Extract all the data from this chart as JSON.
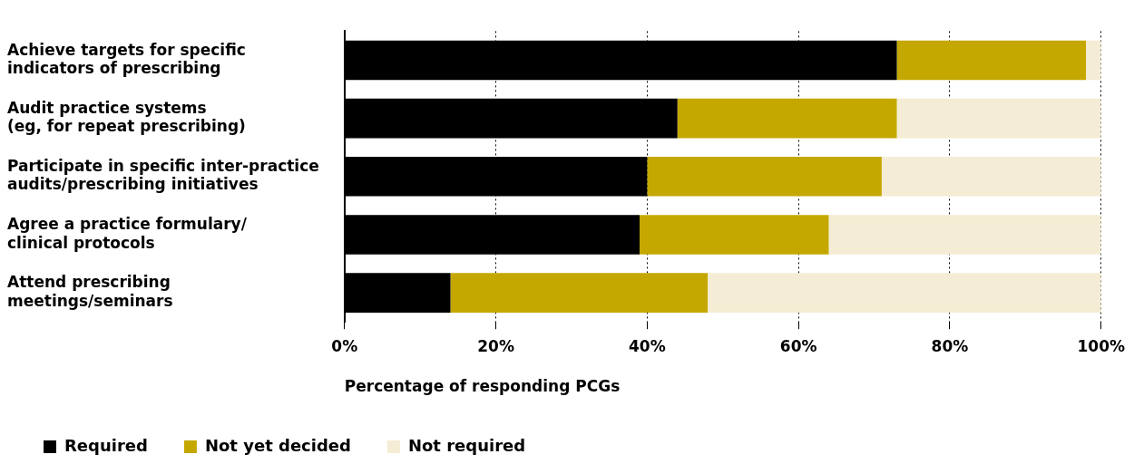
{
  "chart_data": {
    "type": "bar",
    "orientation": "horizontal",
    "stacked": true,
    "categories": [
      "Achieve targets for specific\nindicators of prescribing",
      "Audit practice systems\n(eg, for repeat prescribing)",
      "Participate in specific inter-practice\naudits/prescribing initiatives",
      "Agree a practice formulary/\nclinical protocols",
      "Attend prescribing\nmeetings/seminars"
    ],
    "series": [
      {
        "name": "Required",
        "color": "#000000",
        "values": [
          73,
          44,
          40,
          39,
          14
        ]
      },
      {
        "name": "Not yet decided",
        "color": "#c4a800",
        "values": [
          25,
          29,
          31,
          25,
          34
        ]
      },
      {
        "name": "Not required",
        "color": "#f5ecd5",
        "values": [
          2,
          27,
          29,
          36,
          52
        ]
      }
    ],
    "xlabel": "Percentage of responding PCGs",
    "xlim": [
      0,
      100
    ],
    "xticks": [
      {
        "value": 0,
        "label": "0%"
      },
      {
        "value": 20,
        "label": "20%"
      },
      {
        "value": 40,
        "label": "40%"
      },
      {
        "value": 60,
        "label": "60%"
      },
      {
        "value": 80,
        "label": "80%"
      },
      {
        "value": 100,
        "label": "100%"
      }
    ],
    "grid": "x",
    "legend": "bottom"
  }
}
